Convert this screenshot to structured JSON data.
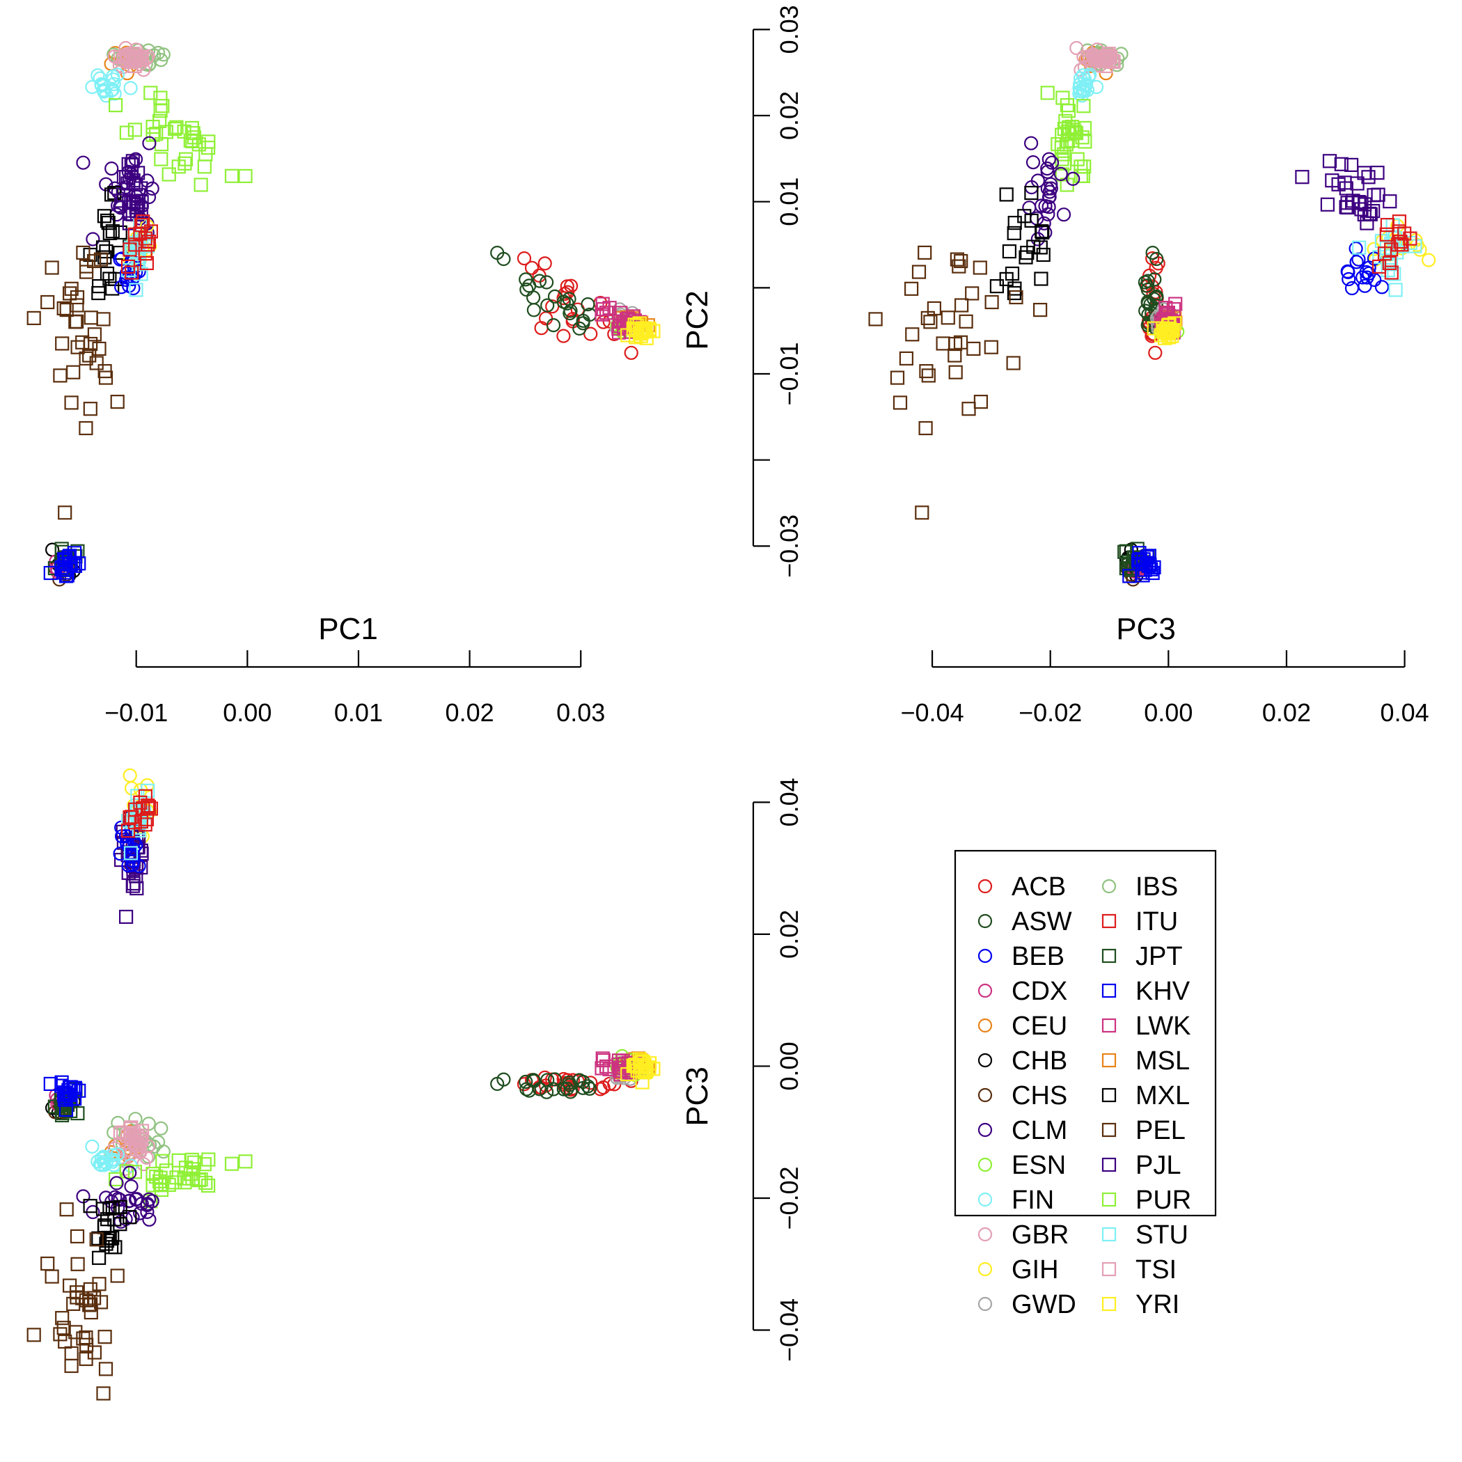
{
  "chart_data": {
    "type": "scatter",
    "description_style": "pairs plot of principal components",
    "panels": [
      {
        "id": "pc2_vs_pc1",
        "x": "PC1",
        "y": "PC2"
      },
      {
        "id": "pc2_vs_pc3",
        "x": "PC3",
        "y": "PC2"
      },
      {
        "id": "pc3_vs_pc1",
        "x": "PC1",
        "y": "PC3"
      }
    ],
    "variables": {
      "PC1": {
        "label": "PC1",
        "range": [
          -0.0185,
          0.036
        ],
        "ticks": [
          -0.01,
          0.0,
          0.01,
          0.02,
          0.03
        ],
        "tick_labels": [
          "−0.01",
          "0.00",
          "0.01",
          "0.02",
          "0.03"
        ]
      },
      "PC2": {
        "label": "PC2",
        "range": [
          -0.0345,
          0.031
        ],
        "ticks": [
          -0.03,
          -0.02,
          -0.01,
          0.0,
          0.01,
          0.02,
          0.03
        ],
        "tick_labels": [
          "−0.03",
          "",
          "−0.01",
          "",
          "0.01",
          "0.02",
          "0.03"
        ]
      },
      "PC3": {
        "label": "PC3",
        "range": [
          -0.0505,
          0.045
        ],
        "ticks": [
          -0.04,
          -0.02,
          0.0,
          0.02,
          0.04
        ],
        "tick_labels": [
          "−0.04",
          "−0.02",
          "0.00",
          "0.02",
          "0.04"
        ]
      }
    },
    "populations": [
      {
        "name": "ACB",
        "color": "#dd1c1c",
        "shape": "circle"
      },
      {
        "name": "ASW",
        "color": "#1f4d1f",
        "shape": "circle"
      },
      {
        "name": "BEB",
        "color": "#0000f0",
        "shape": "circle"
      },
      {
        "name": "CDX",
        "color": "#cc3380",
        "shape": "circle"
      },
      {
        "name": "CEU",
        "color": "#e8841a",
        "shape": "circle"
      },
      {
        "name": "CHB",
        "color": "#000000",
        "shape": "circle"
      },
      {
        "name": "CHS",
        "color": "#5a2e0d",
        "shape": "circle"
      },
      {
        "name": "CLM",
        "color": "#3d0080",
        "shape": "circle"
      },
      {
        "name": "ESN",
        "color": "#8ff036",
        "shape": "circle"
      },
      {
        "name": "FIN",
        "color": "#7ff0f5",
        "shape": "circle"
      },
      {
        "name": "GBR",
        "color": "#e3a0b4",
        "shape": "circle"
      },
      {
        "name": "GIH",
        "color": "#ffee22",
        "shape": "circle"
      },
      {
        "name": "GWD",
        "color": "#a6a6a6",
        "shape": "circle"
      },
      {
        "name": "IBS",
        "color": "#90c281",
        "shape": "circle"
      },
      {
        "name": "ITU",
        "color": "#dd1c1c",
        "shape": "square"
      },
      {
        "name": "JPT",
        "color": "#1f4d1f",
        "shape": "square"
      },
      {
        "name": "KHV",
        "color": "#0000f0",
        "shape": "square"
      },
      {
        "name": "LWK",
        "color": "#cc3380",
        "shape": "square"
      },
      {
        "name": "MSL",
        "color": "#e8841a",
        "shape": "square"
      },
      {
        "name": "MXL",
        "color": "#000000",
        "shape": "square"
      },
      {
        "name": "PEL",
        "color": "#5a2e0d",
        "shape": "square"
      },
      {
        "name": "PJL",
        "color": "#3d0080",
        "shape": "square"
      },
      {
        "name": "PUR",
        "color": "#8ff036",
        "shape": "square"
      },
      {
        "name": "STU",
        "color": "#7ff0f5",
        "shape": "square"
      },
      {
        "name": "TSI",
        "color": "#e3a0b4",
        "shape": "square"
      },
      {
        "name": "YRI",
        "color": "#ffee22",
        "shape": "square"
      }
    ],
    "clusters": [
      {
        "pop": "ACB",
        "pc1": 0.029,
        "pc2": -0.002,
        "pc3": -0.0025,
        "s1": 0.003,
        "s2": 0.0015,
        "s3": 0.0006,
        "n": 22,
        "rot": -0.45
      },
      {
        "pop": "ASW",
        "pc1": 0.027,
        "pc2": -0.0005,
        "pc3": -0.003,
        "s1": 0.0025,
        "s2": 0.0012,
        "s3": 0.0006,
        "n": 22,
        "rot": -0.45
      },
      {
        "pop": "GWD",
        "pc1": 0.034,
        "pc2": -0.004,
        "pc3": -0.001,
        "s1": 0.0008,
        "s2": 0.0006,
        "s3": 0.0007,
        "n": 10,
        "rot": 0
      },
      {
        "pop": "MSL",
        "pc1": 0.0345,
        "pc2": -0.004,
        "pc3": 0.0,
        "s1": 0.0008,
        "s2": 0.0006,
        "s3": 0.0007,
        "n": 10,
        "rot": 0
      },
      {
        "pop": "ESN",
        "pc1": 0.0345,
        "pc2": -0.0045,
        "pc3": 0.0,
        "s1": 0.0007,
        "s2": 0.0005,
        "s3": 0.0007,
        "n": 10,
        "rot": 0
      },
      {
        "pop": "LWK",
        "pc1": 0.0335,
        "pc2": -0.0037,
        "pc3": 0.0,
        "s1": 0.0011,
        "s2": 0.0006,
        "s3": 0.0008,
        "n": 22,
        "rot": -0.2
      },
      {
        "pop": "YRI",
        "pc1": 0.0355,
        "pc2": -0.005,
        "pc3": 0.0,
        "s1": 0.0006,
        "s2": 0.0006,
        "s3": 0.0007,
        "n": 22,
        "rot": 0
      },
      {
        "pop": "CHB",
        "pc1": -0.0165,
        "pc2": -0.032,
        "pc3": -0.006,
        "s1": 0.0005,
        "s2": 0.0007,
        "s3": 0.0008,
        "n": 8,
        "rot": 0
      },
      {
        "pop": "CHS",
        "pc1": -0.0165,
        "pc2": -0.0325,
        "pc3": -0.0065,
        "s1": 0.0004,
        "s2": 0.0006,
        "s3": 0.0008,
        "n": 8,
        "rot": 0
      },
      {
        "pop": "CDX",
        "pc1": -0.0165,
        "pc2": -0.0325,
        "pc3": -0.005,
        "s1": 0.0004,
        "s2": 0.0006,
        "s3": 0.0008,
        "n": 8,
        "rot": 0
      },
      {
        "pop": "JPT",
        "pc1": -0.0163,
        "pc2": -0.032,
        "pc3": -0.006,
        "s1": 0.0005,
        "s2": 0.0008,
        "s3": 0.0009,
        "n": 18,
        "rot": 0
      },
      {
        "pop": "KHV",
        "pc1": -0.016,
        "pc2": -0.0322,
        "pc3": -0.004,
        "s1": 0.0005,
        "s2": 0.0006,
        "s3": 0.0009,
        "n": 20,
        "rot": 0
      },
      {
        "pop": "CEU",
        "pc1": -0.0105,
        "pc2": 0.0265,
        "pc3": -0.0125,
        "s1": 0.0008,
        "s2": 0.0006,
        "s3": 0.0012,
        "n": 12,
        "rot": 0
      },
      {
        "pop": "IBS",
        "pc1": -0.0095,
        "pc2": 0.027,
        "pc3": -0.0115,
        "s1": 0.0012,
        "s2": 0.0006,
        "s3": 0.0015,
        "n": 16,
        "rot": 0
      },
      {
        "pop": "GBR",
        "pc1": -0.0105,
        "pc2": 0.0265,
        "pc3": -0.013,
        "s1": 0.0008,
        "s2": 0.0006,
        "s3": 0.001,
        "n": 18,
        "rot": 0
      },
      {
        "pop": "TSI",
        "pc1": -0.0102,
        "pc2": 0.0268,
        "pc3": -0.0105,
        "s1": 0.0006,
        "s2": 0.0005,
        "s3": 0.001,
        "n": 18,
        "rot": 0
      },
      {
        "pop": "FIN",
        "pc1": -0.0128,
        "pc2": 0.0235,
        "pc3": -0.0145,
        "s1": 0.0007,
        "s2": 0.0008,
        "s3": 0.0011,
        "n": 18,
        "rot": 0
      },
      {
        "pop": "PUR",
        "pc1": -0.0075,
        "pc2": 0.018,
        "pc3": -0.0165,
        "s1": 0.003,
        "s2": 0.0016,
        "s3": 0.0015,
        "n": 34,
        "rot": -0.35
      },
      {
        "pop": "CLM",
        "pc1": -0.0105,
        "pc2": 0.012,
        "pc3": -0.0205,
        "s1": 0.0015,
        "s2": 0.0025,
        "s3": 0.0018,
        "n": 26,
        "rot": 0
      },
      {
        "pop": "MXL",
        "pc1": -0.0125,
        "pc2": 0.006,
        "pc3": -0.0245,
        "s1": 0.0008,
        "s2": 0.0035,
        "s3": 0.0022,
        "n": 20,
        "rot": 0
      },
      {
        "pop": "PEL",
        "pc1": -0.0155,
        "pc2": -0.004,
        "pc3": -0.0375,
        "s1": 0.0016,
        "s2": 0.0055,
        "s3": 0.005,
        "n": 36,
        "rot": 0
      },
      {
        "pop": "GIH",
        "pc1": -0.01,
        "pc2": 0.005,
        "pc3": 0.038,
        "s1": 0.0006,
        "s2": 0.0015,
        "s3": 0.003,
        "n": 14,
        "rot": 0
      },
      {
        "pop": "PJL",
        "pc1": -0.0101,
        "pc2": 0.01,
        "pc3": 0.031,
        "s1": 0.0006,
        "s2": 0.0025,
        "s3": 0.004,
        "n": 30,
        "rot": 0
      },
      {
        "pop": "BEB",
        "pc1": -0.0105,
        "pc2": 0.002,
        "pc3": 0.033,
        "s1": 0.0006,
        "s2": 0.0012,
        "s3": 0.002,
        "n": 16,
        "rot": 0
      },
      {
        "pop": "STU",
        "pc1": -0.01,
        "pc2": 0.005,
        "pc3": 0.038,
        "s1": 0.0006,
        "s2": 0.0018,
        "s3": 0.002,
        "n": 18,
        "rot": 0
      },
      {
        "pop": "ITU",
        "pc1": -0.0098,
        "pc2": 0.005,
        "pc3": 0.039,
        "s1": 0.0007,
        "s2": 0.0015,
        "s3": 0.002,
        "n": 14,
        "rot": 0
      }
    ]
  },
  "legend": {
    "position": "bottom-right",
    "entries": [
      "ACB",
      "ASW",
      "BEB",
      "CDX",
      "CEU",
      "CHB",
      "CHS",
      "CLM",
      "ESN",
      "FIN",
      "GBR",
      "GIH",
      "GWD",
      "IBS",
      "ITU",
      "JPT",
      "KHV",
      "LWK",
      "MSL",
      "MXL",
      "PEL",
      "PJL",
      "PUR",
      "STU",
      "TSI",
      "YRI"
    ]
  },
  "diagonal_labels": {
    "pc1": "PC1",
    "pc2": "PC2",
    "pc3": "PC3"
  }
}
